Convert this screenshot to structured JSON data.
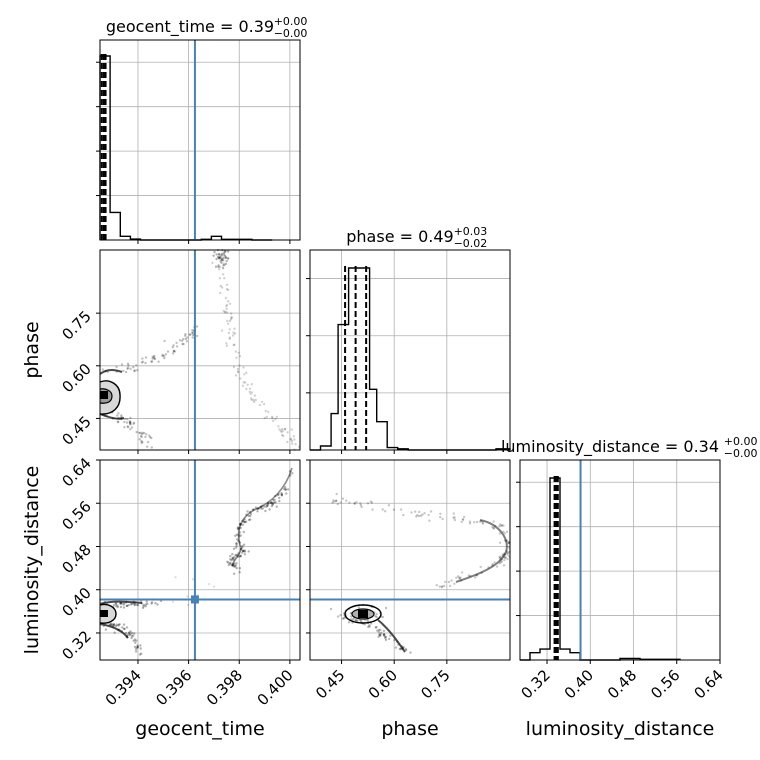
{
  "chart_data": {
    "type": "corner",
    "parameters": [
      "geocent_time",
      "phase",
      "luminosity_distance"
    ],
    "truths": {
      "geocent_time": 0.39625,
      "phase": 0.37,
      "luminosity_distance": 0.382
    },
    "colors": {
      "truth": "#4682b4",
      "hist": "#000000",
      "grid": "#b0b0b0"
    },
    "grid": true,
    "titles": [
      {
        "param": "geocent_time",
        "text": "geocent_time = 0.39",
        "sup": "+0.00",
        "sub": "−0.00"
      },
      {
        "param": "phase",
        "text": "phase = 0.49",
        "sup": "+0.03",
        "sub": "−0.02"
      },
      {
        "param": "luminosity_distance",
        "text": "luminosity_distance = 0.34",
        "sup": "+0.00",
        "sub": "−0.00"
      }
    ],
    "axes": {
      "geocent_time": {
        "range": [
          0.3925,
          0.4004
        ],
        "ticks": [
          0.394,
          0.396,
          0.398,
          0.4
        ],
        "tick_labels": [
          "0.394",
          "0.396",
          "0.398",
          "0.400"
        ]
      },
      "phase": {
        "range": [
          0.36,
          0.93
        ],
        "ticks": [
          0.45,
          0.6,
          0.75
        ],
        "tick_labels": [
          "0.45",
          "0.60",
          "0.75"
        ]
      },
      "luminosity_distance": {
        "range": [
          0.27,
          0.64
        ],
        "ticks": [
          0.32,
          0.4,
          0.48,
          0.56,
          0.64
        ],
        "tick_labels": [
          "0.32",
          "0.40",
          "0.48",
          "0.56",
          "0.64"
        ]
      }
    },
    "x_axis_labels": [
      "geocent_time",
      "phase",
      "luminosity_distance"
    ],
    "y_axis_labels": [
      "phase",
      "luminosity_distance"
    ],
    "histograms": {
      "geocent_time": {
        "bin_edges": [
          0.3925,
          0.3929,
          0.3933,
          0.3937,
          0.3941,
          0.3945,
          0.3949,
          0.3953,
          0.3957,
          0.3961,
          0.3965,
          0.3969,
          0.3973,
          0.3977,
          0.3981,
          0.3985,
          0.3989,
          0.3993
        ],
        "counts": [
          1.0,
          0.15,
          0.02,
          0.005,
          0,
          0,
          0,
          0,
          0,
          0,
          0.004,
          0.02,
          0.004,
          0.004,
          0.004,
          0,
          0
        ],
        "quantiles": [
          0.39257,
          0.39265,
          0.39272
        ]
      },
      "phase": {
        "bin_edges": [
          0.36,
          0.39,
          0.42,
          0.44,
          0.47,
          0.5,
          0.53,
          0.55,
          0.58,
          0.61,
          0.64,
          0.67,
          0.69,
          0.72,
          0.75,
          0.78,
          0.81,
          0.83,
          0.86,
          0.89,
          0.93
        ],
        "counts": [
          0,
          0.02,
          0.18,
          0.62,
          0.9,
          0.9,
          0.3,
          0.14,
          0.012,
          0.006,
          0,
          0,
          0,
          0,
          0,
          0,
          0,
          0,
          0,
          0.006
        ],
        "quantiles": [
          0.46,
          0.49,
          0.52
        ]
      },
      "luminosity_distance": {
        "bin_edges": [
          0.27,
          0.2885,
          0.307,
          0.3255,
          0.344,
          0.3625,
          0.381,
          0.3995,
          0.418,
          0.4365,
          0.455,
          0.4735,
          0.492,
          0.5105,
          0.529,
          0.5475,
          0.566
        ],
        "counts": [
          0,
          0.04,
          0.06,
          1.0,
          0.06,
          0.04,
          0,
          0,
          0,
          0,
          0.008,
          0.008,
          0.004,
          0.004,
          0.004,
          0.004
        ],
        "quantiles": [
          0.334,
          0.337,
          0.34
        ]
      }
    }
  }
}
